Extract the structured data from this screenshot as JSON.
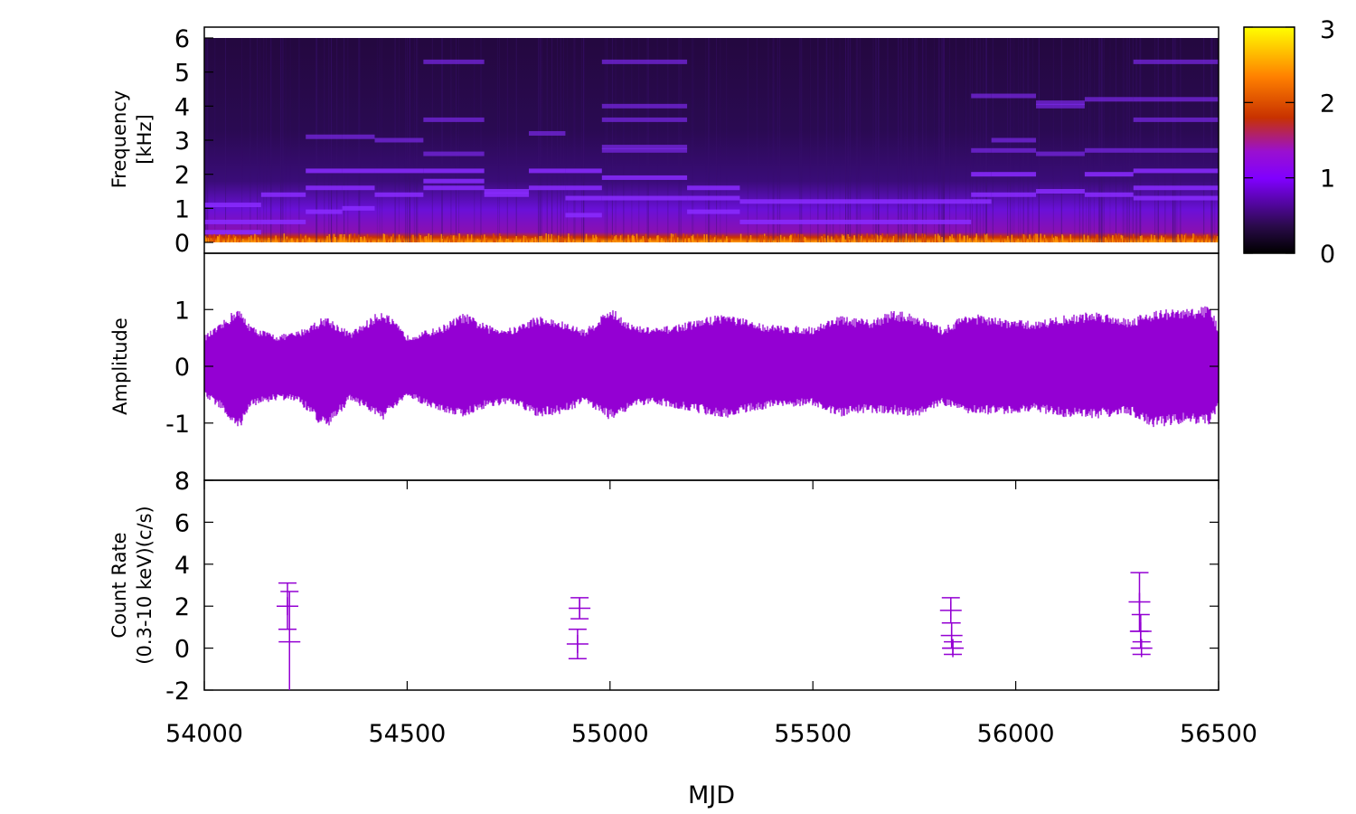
{
  "figure": {
    "x_axis_label": "MJD"
  },
  "colors": {
    "signal": "#9400d3",
    "palette": [
      "#000000",
      "#2a0a4a",
      "#8000ff",
      "#c83200",
      "#ff9a00",
      "#ffff00"
    ]
  },
  "chart_data": [
    {
      "type": "heatmap",
      "panel": "spectrogram",
      "ylabel_line1": "Frequency",
      "ylabel_line2": "[kHz]",
      "xlim": [
        54000,
        56500
      ],
      "ylim": [
        0,
        6
      ],
      "yticks": [
        "0",
        "1",
        "2",
        "3",
        "4",
        "5",
        "6"
      ],
      "colorbar": {
        "range": [
          0,
          3
        ],
        "ticks": [
          "0",
          "1",
          "2",
          "3"
        ]
      },
      "harmonic_segments": [
        {
          "x0": 54000,
          "x1": 54140,
          "freqs": [
            0.3,
            0.6,
            1.1
          ]
        },
        {
          "x0": 54140,
          "x1": 54250,
          "freqs": [
            0.6,
            1.4
          ]
        },
        {
          "x0": 54250,
          "x1": 54340,
          "freqs": [
            0.9,
            1.6,
            2.1,
            3.1
          ]
        },
        {
          "x0": 54340,
          "x1": 54420,
          "freqs": [
            1.0,
            1.6,
            2.1,
            3.1
          ]
        },
        {
          "x0": 54420,
          "x1": 54540,
          "freqs": [
            1.4,
            2.1,
            3.0
          ]
        },
        {
          "x0": 54540,
          "x1": 54690,
          "freqs": [
            1.6,
            1.8,
            2.1,
            2.6,
            3.6,
            5.3
          ]
        },
        {
          "x0": 54690,
          "x1": 54800,
          "freqs": [
            1.4,
            1.5
          ]
        },
        {
          "x0": 54800,
          "x1": 54890,
          "freqs": [
            1.6,
            2.1,
            3.2
          ]
        },
        {
          "x0": 54890,
          "x1": 54980,
          "freqs": [
            0.8,
            1.3,
            1.6,
            2.1
          ]
        },
        {
          "x0": 54980,
          "x1": 55190,
          "freqs": [
            1.3,
            1.9,
            2.7,
            2.8,
            3.6,
            4.0,
            5.3
          ]
        },
        {
          "x0": 55190,
          "x1": 55320,
          "freqs": [
            0.9,
            1.3,
            1.6
          ]
        },
        {
          "x0": 55320,
          "x1": 55890,
          "freqs": [
            0.6,
            1.2
          ]
        },
        {
          "x0": 55890,
          "x1": 55940,
          "freqs": [
            1.2,
            1.4,
            2.0,
            2.7,
            4.3
          ]
        },
        {
          "x0": 55940,
          "x1": 56050,
          "freqs": [
            1.4,
            2.0,
            2.7,
            3.0,
            4.3
          ]
        },
        {
          "x0": 56050,
          "x1": 56170,
          "freqs": [
            1.5,
            2.6,
            4.0,
            4.1
          ]
        },
        {
          "x0": 56170,
          "x1": 56290,
          "freqs": [
            1.4,
            2.0,
            2.7,
            4.2
          ]
        },
        {
          "x0": 56290,
          "x1": 56500,
          "freqs": [
            1.3,
            1.6,
            2.1,
            2.7,
            3.6,
            4.2,
            5.3
          ]
        }
      ]
    },
    {
      "type": "line",
      "panel": "waveform",
      "ylabel": "Amplitude",
      "xlim": [
        54000,
        56500
      ],
      "ylim": [
        -2,
        2
      ],
      "yticks": [
        -1,
        0,
        1
      ],
      "ytick_labels": [
        "-1",
        "0",
        "1"
      ],
      "envelope": {
        "x": [
          54000,
          54040,
          54080,
          54120,
          54180,
          54230,
          54300,
          54360,
          54440,
          54500,
          54580,
          54640,
          54700,
          54760,
          54820,
          54880,
          54940,
          55000,
          55060,
          55120,
          55200,
          55280,
          55360,
          55420,
          55500,
          55560,
          55640,
          55700,
          55760,
          55820,
          55880,
          55960,
          56040,
          56120,
          56200,
          56280,
          56340,
          56420,
          56480,
          56500
        ],
        "upper": [
          0.55,
          0.75,
          1.05,
          0.7,
          0.55,
          0.62,
          0.9,
          0.6,
          1.02,
          0.55,
          0.7,
          0.95,
          0.72,
          0.68,
          0.9,
          0.8,
          0.65,
          1.05,
          0.72,
          0.68,
          0.8,
          0.95,
          0.78,
          0.72,
          0.7,
          0.9,
          0.82,
          1.0,
          0.9,
          0.68,
          0.95,
          0.85,
          0.8,
          0.9,
          0.98,
          0.85,
          1.0,
          1.02,
          1.08,
          0.7
        ],
        "lower": [
          -0.55,
          -0.75,
          -1.18,
          -0.7,
          -0.6,
          -0.62,
          -1.15,
          -0.6,
          -0.95,
          -0.55,
          -0.8,
          -0.9,
          -0.72,
          -0.68,
          -0.9,
          -0.85,
          -0.65,
          -0.95,
          -0.72,
          -0.68,
          -0.8,
          -0.92,
          -0.78,
          -0.72,
          -0.7,
          -0.9,
          -0.82,
          -0.85,
          -0.9,
          -0.68,
          -0.85,
          -0.85,
          -0.8,
          -0.9,
          -0.92,
          -0.85,
          -1.1,
          -1.0,
          -1.05,
          -0.7
        ]
      }
    },
    {
      "type": "scatter",
      "panel": "lightcurve",
      "ylabel_line1": "Count Rate",
      "ylabel_line2": "(0.3-10 keV)(c/s)",
      "xlim": [
        54000,
        56500
      ],
      "ylim": [
        -2,
        8
      ],
      "xticks": [
        54000,
        54500,
        55000,
        55500,
        56000,
        56500
      ],
      "xtick_labels": [
        "54000",
        "54500",
        "55000",
        "55500",
        "56000",
        "56500"
      ],
      "yticks": [
        -2,
        0,
        2,
        4,
        6,
        8
      ],
      "ytick_labels": [
        "-2",
        "0",
        "2",
        "4",
        "6",
        "8"
      ],
      "points": [
        {
          "x": 54205,
          "y": 2.0,
          "err": 1.1
        },
        {
          "x": 54210,
          "y": 0.3,
          "err": 2.4
        },
        {
          "x": 54920,
          "y": 0.2,
          "err": 0.7
        },
        {
          "x": 54925,
          "y": 1.9,
          "err": 0.5
        },
        {
          "x": 55840,
          "y": 1.8,
          "err": 0.6
        },
        {
          "x": 55842,
          "y": 0.6,
          "err": 0.6
        },
        {
          "x": 55845,
          "y": 0.0,
          "err": 0.3
        },
        {
          "x": 56305,
          "y": 2.2,
          "err": 1.4
        },
        {
          "x": 56308,
          "y": 0.8,
          "err": 0.8
        },
        {
          "x": 56310,
          "y": 0.0,
          "err": 0.3
        }
      ]
    }
  ]
}
